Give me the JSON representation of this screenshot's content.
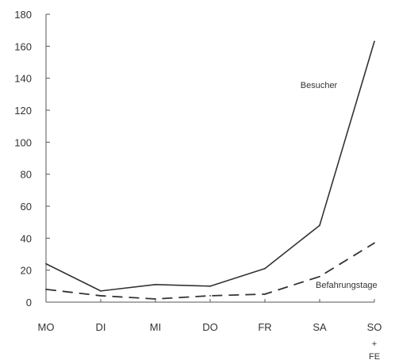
{
  "chart_data": {
    "type": "line",
    "categories": [
      "MO",
      "DI",
      "MI",
      "DO",
      "FR",
      "SA",
      "SO"
    ],
    "category_sublabels": {
      "SO": [
        "+",
        "FE"
      ]
    },
    "y_ticks": [
      "0",
      "20",
      "40",
      "60",
      "80",
      "100",
      "120",
      "140",
      "160",
      "180"
    ],
    "ylim": [
      0,
      180
    ],
    "grid": false,
    "series": [
      {
        "name": "Besucher",
        "values": [
          24,
          7,
          11,
          10,
          21,
          48,
          163
        ],
        "style": "solid",
        "color": "#333333"
      },
      {
        "name": "Befahrungstage",
        "values": [
          8,
          4,
          2,
          4,
          5,
          16,
          37
        ],
        "style": "dashed",
        "color": "#333333"
      }
    ]
  }
}
